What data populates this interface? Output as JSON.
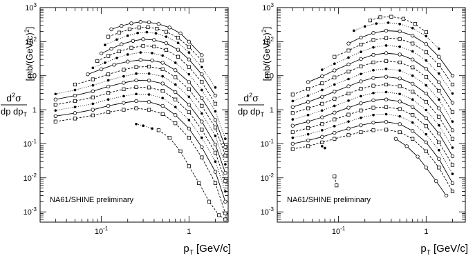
{
  "chart_data": [
    {
      "type": "line",
      "log_x": true,
      "log_y": true,
      "xlim": [
        0.02,
        2.8
      ],
      "ylim": [
        0.0005,
        1000
      ],
      "x_ticks": [
        {
          "v": 0.1,
          "label": "10",
          "exp": "-1"
        },
        {
          "v": 1,
          "label": "1",
          "exp": ""
        }
      ],
      "y_ticks": [
        {
          "v": 0.001,
          "label": "10",
          "exp": "-3"
        },
        {
          "v": 0.01,
          "label": "10",
          "exp": "-2"
        },
        {
          "v": 0.1,
          "label": "10",
          "exp": "-1"
        },
        {
          "v": 1,
          "label": "1",
          "exp": ""
        },
        {
          "v": 10,
          "label": "10",
          "exp": ""
        },
        {
          "v": 100,
          "label": "10",
          "exp": "2"
        },
        {
          "v": 1000,
          "label": "10",
          "exp": "3"
        }
      ],
      "xlabel": {
        "main": "p",
        "sub": "T",
        "unit": " [GeV/c]"
      },
      "ylabel": {
        "num": "d",
        "num_sup": "2",
        "num_after": "σ",
        "den": "dp dp",
        "den_sub": "T",
        "unit": "[mb/(GeV/c)",
        "unit_sup": "2",
        "unit_close": "]"
      },
      "annotation": "NA61/SHINE preliminary",
      "grid": false,
      "series": [
        {
          "x": [
            0.03,
            0.05,
            0.08,
            0.12,
            0.18,
            0.25,
            0.35,
            0.5,
            0.7,
            1.0,
            1.4,
            2.0,
            2.6
          ],
          "y": [
            0.45,
            0.55,
            0.68,
            0.85,
            1.0,
            1.1,
            1.0,
            0.75,
            0.4,
            0.15,
            0.04,
            0.007,
            0.0009
          ]
        },
        {
          "x": [
            0.03,
            0.05,
            0.08,
            0.12,
            0.18,
            0.25,
            0.35,
            0.5,
            0.7,
            1.0,
            1.4,
            2.0,
            2.6
          ],
          "y": [
            0.65,
            0.8,
            1.0,
            1.3,
            1.6,
            1.8,
            1.7,
            1.3,
            0.7,
            0.28,
            0.08,
            0.015,
            0.002
          ]
        },
        {
          "x": [
            0.03,
            0.05,
            0.08,
            0.12,
            0.18,
            0.25,
            0.35,
            0.5,
            0.7,
            1.0,
            1.4,
            2.0,
            2.6
          ],
          "y": [
            0.95,
            1.2,
            1.5,
            2.0,
            2.5,
            2.9,
            2.8,
            2.2,
            1.2,
            0.5,
            0.15,
            0.03,
            0.004
          ]
        },
        {
          "x": [
            0.03,
            0.05,
            0.08,
            0.12,
            0.18,
            0.25,
            0.35,
            0.5,
            0.7,
            1.0,
            1.4,
            2.0,
            2.6
          ],
          "y": [
            1.4,
            1.8,
            2.3,
            3.1,
            4.0,
            4.6,
            4.5,
            3.6,
            2.0,
            0.85,
            0.26,
            0.055,
            0.008
          ]
        },
        {
          "x": [
            0.03,
            0.05,
            0.08,
            0.12,
            0.18,
            0.25,
            0.35,
            0.5,
            0.7,
            1.0,
            1.4,
            2.0,
            2.6
          ],
          "y": [
            2.0,
            2.6,
            3.5,
            4.8,
            6.2,
            7.3,
            7.2,
            5.9,
            3.3,
            1.4,
            0.45,
            0.095,
            0.014
          ]
        },
        {
          "x": [
            0.03,
            0.05,
            0.08,
            0.12,
            0.18,
            0.25,
            0.35,
            0.5,
            0.7,
            1.0,
            1.4,
            2.0,
            2.6
          ],
          "y": [
            2.9,
            3.8,
            5.2,
            7.3,
            9.6,
            11.5,
            11.5,
            9.6,
            5.5,
            2.4,
            0.78,
            0.17,
            0.025
          ]
        },
        {
          "x": [
            0.05,
            0.08,
            0.12,
            0.18,
            0.25,
            0.35,
            0.5,
            0.7,
            1.0,
            1.4,
            2.0,
            2.6
          ],
          "y": [
            5.5,
            7.8,
            11.0,
            15.0,
            18.0,
            18.5,
            15.5,
            9.0,
            4.0,
            1.3,
            0.3,
            0.045
          ]
        },
        {
          "x": [
            0.07,
            0.1,
            0.14,
            0.2,
            0.28,
            0.38,
            0.5,
            0.7,
            1.0,
            1.4,
            2.0,
            2.6
          ],
          "y": [
            11.0,
            15.5,
            21.0,
            26.0,
            29.0,
            28.0,
            24.0,
            14.5,
            6.5,
            2.2,
            0.5,
            0.08
          ]
        },
        {
          "x": [
            0.08,
            0.11,
            0.15,
            0.2,
            0.28,
            0.38,
            0.5,
            0.7,
            1.0,
            1.4,
            2.0,
            2.6
          ],
          "y": [
            17.0,
            24.0,
            33.0,
            42.0,
            48.0,
            46.0,
            39.0,
            24.0,
            11.0,
            3.8,
            0.9,
            0.14
          ]
        },
        {
          "x": [
            0.09,
            0.12,
            0.16,
            0.22,
            0.3,
            0.4,
            0.55,
            0.75,
            1.0,
            1.4,
            2.0
          ],
          "y": [
            27.0,
            38.0,
            52.0,
            66.0,
            75.0,
            72.0,
            57.0,
            36.0,
            18.0,
            6.5,
            1.5
          ]
        },
        {
          "x": [
            0.1,
            0.13,
            0.17,
            0.23,
            0.3,
            0.4,
            0.55,
            0.75,
            1.0,
            1.4,
            2.0
          ],
          "y": [
            45.0,
            62.0,
            84.0,
            105.0,
            118.0,
            112.0,
            90.0,
            58.0,
            30.0,
            11.0,
            2.6
          ]
        },
        {
          "x": [
            0.11,
            0.15,
            0.2,
            0.26,
            0.33,
            0.42,
            0.55,
            0.75,
            1.0,
            1.4,
            2.0
          ],
          "y": [
            80.0,
            115.0,
            150.0,
            180.0,
            190.0,
            175.0,
            140.0,
            92.0,
            48.0,
            18.0,
            4.5
          ]
        },
        {
          "x": [
            0.12,
            0.16,
            0.21,
            0.27,
            0.34,
            0.43,
            0.55,
            0.75,
            1.0,
            1.4
          ],
          "y": [
            140.0,
            185.0,
            230.0,
            260.0,
            265.0,
            240.0,
            195.0,
            130.0,
            70.0,
            28.0
          ]
        },
        {
          "x": [
            0.13,
            0.17,
            0.22,
            0.28,
            0.35,
            0.45,
            0.6,
            0.8,
            1.0,
            1.4
          ],
          "y": [
            230.0,
            290.0,
            345.0,
            380.0,
            370.0,
            330.0,
            260.0,
            175.0,
            100.0,
            40.0
          ]
        },
        {
          "x": [
            0.25,
            0.3,
            0.38
          ],
          "y": [
            0.38,
            0.34,
            0.28
          ]
        },
        {
          "x": [
            0.45,
            0.6,
            0.8,
            1.0,
            1.3,
            1.7,
            2.2,
            2.6
          ],
          "y": [
            0.25,
            0.15,
            0.06,
            0.022,
            0.007,
            0.002,
            0.0008,
            0.0006
          ]
        }
      ]
    },
    {
      "type": "line",
      "log_x": true,
      "log_y": true,
      "xlim": [
        0.02,
        2.8
      ],
      "ylim": [
        0.0005,
        1000
      ],
      "x_ticks": [
        {
          "v": 0.1,
          "label": "10",
          "exp": "-1"
        },
        {
          "v": 1,
          "label": "1",
          "exp": ""
        }
      ],
      "y_ticks": [
        {
          "v": 0.001,
          "label": "10",
          "exp": "-3"
        },
        {
          "v": 0.01,
          "label": "10",
          "exp": "-2"
        },
        {
          "v": 0.1,
          "label": "10",
          "exp": "-1"
        },
        {
          "v": 1,
          "label": "1",
          "exp": ""
        },
        {
          "v": 10,
          "label": "10",
          "exp": ""
        },
        {
          "v": 100,
          "label": "10",
          "exp": "2"
        },
        {
          "v": 1000,
          "label": "10",
          "exp": "3"
        }
      ],
      "xlabel": {
        "main": "p",
        "sub": "T",
        "unit": " [GeV/c]"
      },
      "ylabel": {
        "num": "d",
        "num_sup": "2",
        "num_after": "σ",
        "den": "dp dp",
        "den_sub": "T",
        "unit": "[mb/(GeV/c)",
        "unit_sup": "2",
        "unit_close": "]"
      },
      "annotation": "NA61/SHINE preliminary",
      "grid": false,
      "series": [
        {
          "x": [
            0.03,
            0.045,
            0.065,
            0.09,
            0.13,
            0.18,
            0.25,
            0.35,
            0.5,
            0.7,
            1.0,
            1.4,
            2.0
          ],
          "y": [
            0.07,
            0.085,
            0.11,
            0.14,
            0.18,
            0.22,
            0.25,
            0.26,
            0.22,
            0.14,
            0.06,
            0.02,
            0.004
          ]
        },
        {
          "x": [
            0.03,
            0.045,
            0.065,
            0.09,
            0.13,
            0.18,
            0.25,
            0.35,
            0.5,
            0.7,
            1.0,
            1.4,
            2.0
          ],
          "y": [
            0.1,
            0.125,
            0.16,
            0.21,
            0.28,
            0.35,
            0.42,
            0.44,
            0.38,
            0.24,
            0.11,
            0.036,
            0.007
          ]
        },
        {
          "x": [
            0.03,
            0.045,
            0.065,
            0.09,
            0.13,
            0.18,
            0.25,
            0.35,
            0.5,
            0.7,
            1.0,
            1.4,
            2.0
          ],
          "y": [
            0.15,
            0.19,
            0.25,
            0.33,
            0.45,
            0.58,
            0.7,
            0.74,
            0.64,
            0.42,
            0.19,
            0.065,
            0.013
          ]
        },
        {
          "x": [
            0.03,
            0.045,
            0.065,
            0.09,
            0.13,
            0.18,
            0.25,
            0.35,
            0.5,
            0.7,
            1.0,
            1.4,
            2.0
          ],
          "y": [
            0.22,
            0.29,
            0.38,
            0.52,
            0.72,
            0.95,
            1.15,
            1.2,
            1.05,
            0.7,
            0.33,
            0.11,
            0.024
          ]
        },
        {
          "x": [
            0.03,
            0.045,
            0.065,
            0.09,
            0.13,
            0.18,
            0.25,
            0.35,
            0.5,
            0.7,
            1.0,
            1.4,
            2.0
          ],
          "y": [
            0.34,
            0.45,
            0.6,
            0.82,
            1.15,
            1.55,
            1.9,
            2.0,
            1.75,
            1.2,
            0.57,
            0.2,
            0.043
          ]
        },
        {
          "x": [
            0.03,
            0.045,
            0.065,
            0.09,
            0.13,
            0.18,
            0.25,
            0.35,
            0.5,
            0.7,
            1.0,
            1.4,
            2.0
          ],
          "y": [
            0.52,
            0.7,
            0.95,
            1.3,
            1.85,
            2.5,
            3.1,
            3.3,
            2.9,
            2.0,
            0.98,
            0.35,
            0.077
          ]
        },
        {
          "x": [
            0.03,
            0.045,
            0.065,
            0.09,
            0.13,
            0.18,
            0.25,
            0.35,
            0.5,
            0.7,
            1.0,
            1.4,
            2.0
          ],
          "y": [
            0.8,
            1.1,
            1.5,
            2.1,
            3.0,
            4.1,
            5.1,
            5.5,
            4.9,
            3.4,
            1.7,
            0.62,
            0.14
          ]
        },
        {
          "x": [
            0.03,
            0.045,
            0.065,
            0.09,
            0.13,
            0.18,
            0.25,
            0.35,
            0.5,
            0.7,
            1.0,
            1.4,
            2.0
          ],
          "y": [
            1.2,
            1.7,
            2.4,
            3.4,
            4.9,
            6.8,
            8.6,
            9.3,
            8.3,
            5.8,
            3.0,
            1.1,
            0.25
          ]
        },
        {
          "x": [
            0.03,
            0.045,
            0.065,
            0.09,
            0.13,
            0.18,
            0.25,
            0.35,
            0.5,
            0.7,
            1.0,
            1.4,
            2.0
          ],
          "y": [
            1.8,
            2.6,
            3.8,
            5.5,
            8.0,
            11.2,
            14.5,
            15.8,
            14.2,
            10.0,
            5.2,
            2.0,
            0.45
          ]
        },
        {
          "x": [
            0.03,
            0.045,
            0.065,
            0.09,
            0.13,
            0.18,
            0.25,
            0.35,
            0.5,
            0.7,
            1.0,
            1.4,
            2.0
          ],
          "y": [
            2.8,
            4.1,
            6.0,
            8.9,
            13.2,
            18.8,
            24.5,
            27.0,
            24.5,
            17.5,
            9.2,
            3.6,
            0.85
          ]
        },
        {
          "x": [
            0.045,
            0.065,
            0.09,
            0.13,
            0.18,
            0.25,
            0.35,
            0.5,
            0.7,
            1.0,
            1.4,
            2.0
          ],
          "y": [
            6.5,
            9.6,
            14.3,
            21.5,
            31.0,
            41.0,
            46.0,
            42.0,
            30.0,
            16.0,
            6.4,
            1.6
          ]
        },
        {
          "x": [
            0.065,
            0.09,
            0.13,
            0.18,
            0.25,
            0.35,
            0.5,
            0.7,
            1.0,
            1.4,
            2.0
          ],
          "y": [
            15.0,
            22.5,
            34.0,
            50.0,
            68.0,
            77.0,
            71.0,
            52.0,
            28.0,
            11.5,
            3.0
          ]
        },
        {
          "x": [
            0.09,
            0.13,
            0.18,
            0.25,
            0.35,
            0.5,
            0.7,
            1.0,
            1.4,
            2.0
          ],
          "y": [
            36.0,
            55.0,
            82.0,
            112.0,
            128.0,
            120.0,
            88.0,
            49.0,
            20.5,
            5.5
          ]
        },
        {
          "x": [
            0.13,
            0.18,
            0.25,
            0.35,
            0.5,
            0.7,
            1.0,
            1.4,
            2.0
          ],
          "y": [
            88.0,
            132.0,
            180.0,
            210.0,
            200.0,
            150.0,
            85.0,
            36.0,
            10.0
          ]
        },
        {
          "x": [
            0.15,
            0.2,
            0.27,
            0.37,
            0.5,
            0.7,
            1.0,
            1.4
          ],
          "y": [
            210.0,
            280.0,
            340.0,
            360.0,
            330.0,
            250.0,
            145.0,
            62.0
          ]
        },
        {
          "x": [
            0.23,
            0.3,
            0.4,
            0.55,
            0.75,
            1.0
          ],
          "y": [
            420.0,
            520.0,
            540.0,
            470.0,
            330.0,
            190.0
          ]
        },
        {
          "x": [
            0.45,
            0.6,
            0.8,
            1.0,
            1.3,
            1.7
          ],
          "y": [
            0.14,
            0.085,
            0.042,
            0.02,
            0.008,
            0.003
          ]
        },
        {
          "x": [
            0.065,
            0.07
          ],
          "y": [
            0.085,
            0.075
          ]
        },
        {
          "x": [
            0.09,
            0.095
          ],
          "y": [
            0.011,
            0.006
          ]
        }
      ]
    }
  ]
}
